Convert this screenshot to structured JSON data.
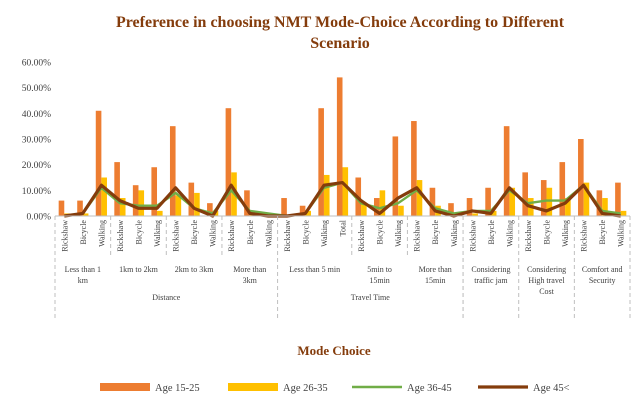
{
  "chart_data": {
    "type": "bar",
    "title_line1": "Preference in choosing NMT Mode-Choice According to Different",
    "title_line2": "Scenario",
    "xlabel": "Mode Choice",
    "ylabel": "",
    "ylim": [
      0,
      60
    ],
    "yticks": [
      "0.00%",
      "10.00%",
      "20.00%",
      "30.00%",
      "40.00%",
      "50.00%",
      "60.00%"
    ],
    "grid": false,
    "legend_position": "bottom",
    "categories": [
      "Rickshaw",
      "Bicycle",
      "Walking",
      "Rickshaw",
      "Bicycle",
      "Walking",
      "Rickshaw",
      "Bicycle",
      "Walking",
      "Rickshaw",
      "Bicycle",
      "Walking",
      "Rickshaw",
      "Bicycle",
      "Walking",
      "Total",
      "Rickshaw",
      "Bicycle",
      "Walking",
      "Rickshaw",
      "Bicycle",
      "Walking",
      "Rickshaw",
      "Bicycle",
      "Walking",
      "Rickshaw",
      "Bicycle",
      "Walking",
      "Rickshaw",
      "Bicycle",
      "Walking"
    ],
    "subgroups": [
      {
        "label": "Less than 1 km",
        "start": 0,
        "count": 3
      },
      {
        "label": "1km to 2km",
        "start": 3,
        "count": 3
      },
      {
        "label": "2km to 3km",
        "start": 6,
        "count": 3
      },
      {
        "label": "More than 3km",
        "start": 9,
        "count": 3
      },
      {
        "label": "Less than 5 min",
        "start": 12,
        "count": 4
      },
      {
        "label": "5min to 15min",
        "start": 16,
        "count": 3
      },
      {
        "label": "More than 15min",
        "start": 19,
        "count": 3
      },
      {
        "label": "Considering traffic jam",
        "start": 22,
        "count": 3
      },
      {
        "label": "Considering High travel Cost",
        "start": 25,
        "count": 3
      },
      {
        "label": "Comfort and Security",
        "start": 28,
        "count": 3
      }
    ],
    "groups": [
      {
        "label": "Distance",
        "start": 0,
        "count": 12
      },
      {
        "label": "Travel Time",
        "start": 12,
        "count": 10
      }
    ],
    "series": [
      {
        "name": "Age 15-25",
        "kind": "bar",
        "color": "#ed7d31",
        "values": [
          6,
          6,
          41,
          21,
          12,
          19,
          35,
          13,
          5,
          42,
          10,
          0,
          7,
          4,
          42,
          54,
          15,
          7,
          31,
          37,
          11,
          5,
          7,
          11,
          35,
          17,
          14,
          21,
          30,
          10,
          13
        ]
      },
      {
        "name": "Age 26-35",
        "kind": "bar",
        "color": "#ffc000",
        "values": [
          1,
          1,
          15,
          7,
          10,
          2,
          8,
          9,
          2,
          17,
          2,
          0,
          0,
          2,
          16,
          19,
          5,
          10,
          4,
          14,
          4,
          1,
          1,
          2,
          11,
          7,
          11,
          7,
          13,
          7,
          2
        ]
      },
      {
        "name": "Age 36-45",
        "kind": "line",
        "color": "#70ad47",
        "values": [
          0,
          1,
          11,
          5,
          4,
          4,
          9,
          3,
          1,
          10,
          2,
          1,
          0,
          1,
          11,
          13,
          5,
          3,
          5,
          10,
          3,
          1,
          2,
          2,
          10,
          5,
          6,
          6,
          12,
          2,
          1
        ]
      },
      {
        "name": "Age 45<",
        "kind": "line",
        "color": "#843c0c",
        "values": [
          0,
          1,
          12,
          6,
          3,
          3,
          11,
          3,
          0,
          12,
          1,
          0,
          0,
          1,
          12,
          13,
          6,
          1,
          7,
          11,
          2,
          0,
          2,
          1,
          11,
          4,
          2,
          5,
          12,
          1,
          0
        ]
      }
    ]
  }
}
